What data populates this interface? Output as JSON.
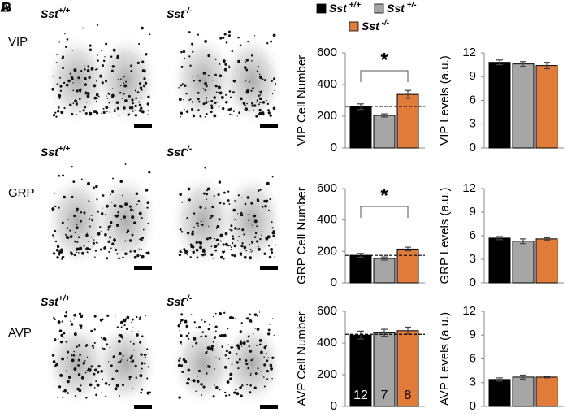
{
  "panel_letters": [
    "A",
    "B"
  ],
  "images": {
    "rows": [
      {
        "label": "VIP",
        "genotypes": [
          {
            "base": "Sst",
            "sup": "+/+"
          },
          {
            "base": "Sst",
            "sup": "-/-"
          }
        ]
      },
      {
        "label": "GRP",
        "genotypes": [
          {
            "base": "Sst",
            "sup": "+/+"
          },
          {
            "base": "Sst",
            "sup": "-/-"
          }
        ]
      },
      {
        "label": "AVP",
        "genotypes": [
          {
            "base": "Sst",
            "sup": "+/+"
          },
          {
            "base": "Sst",
            "sup": "-/-"
          }
        ]
      }
    ]
  },
  "legend": [
    {
      "base": "Sst",
      "sup": " +/+",
      "color": "#000000"
    },
    {
      "base": "Sst",
      "sup": " +/-",
      "color": "#a6a6a6"
    },
    {
      "base": "Sst",
      "sup": " -/-",
      "color": "#e07b39"
    }
  ],
  "chart_data": [
    {
      "type": "bar",
      "ylabel": "VIP Cell Number",
      "values": [
        260,
        205,
        338
      ],
      "errors": [
        18,
        10,
        25
      ],
      "ylim": [
        0,
        600
      ],
      "yticks": [
        0,
        200,
        400,
        600
      ],
      "reference_line": 262,
      "significance": {
        "label": "*",
        "pair": [
          0,
          2
        ]
      }
    },
    {
      "type": "bar",
      "ylabel": "VIP Levels (a.u.)",
      "values": [
        10.8,
        10.6,
        10.4
      ],
      "errors": [
        0.3,
        0.3,
        0.4
      ],
      "ylim": [
        0,
        12
      ],
      "yticks": [
        0,
        3,
        6,
        9,
        12
      ]
    },
    {
      "type": "bar",
      "ylabel": "GRP Cell Number",
      "values": [
        175,
        155,
        215
      ],
      "errors": [
        12,
        10,
        12
      ],
      "ylim": [
        0,
        600
      ],
      "yticks": [
        0,
        200,
        400,
        600
      ],
      "reference_line": 175,
      "significance": {
        "label": "*",
        "pair": [
          0,
          2
        ]
      }
    },
    {
      "type": "bar",
      "ylabel": "GRP Levels (a.u.)",
      "values": [
        5.7,
        5.3,
        5.6
      ],
      "errors": [
        0.2,
        0.3,
        0.15
      ],
      "ylim": [
        0,
        12
      ],
      "yticks": [
        0,
        3,
        6,
        9,
        12
      ]
    },
    {
      "type": "bar",
      "ylabel": "AVP Cell Number",
      "values": [
        450,
        465,
        478
      ],
      "errors": [
        25,
        22,
        22
      ],
      "ylim": [
        0,
        600
      ],
      "yticks": [
        0,
        200,
        400,
        600
      ],
      "reference_line": 455,
      "n_labels": [
        12,
        7,
        8
      ]
    },
    {
      "type": "bar",
      "ylabel": "AVP Levels (a.u.)",
      "values": [
        3.4,
        3.7,
        3.7
      ],
      "errors": [
        0.2,
        0.25,
        0.1
      ],
      "ylim": [
        0,
        12
      ],
      "yticks": [
        0,
        3,
        6,
        9,
        12
      ]
    }
  ]
}
